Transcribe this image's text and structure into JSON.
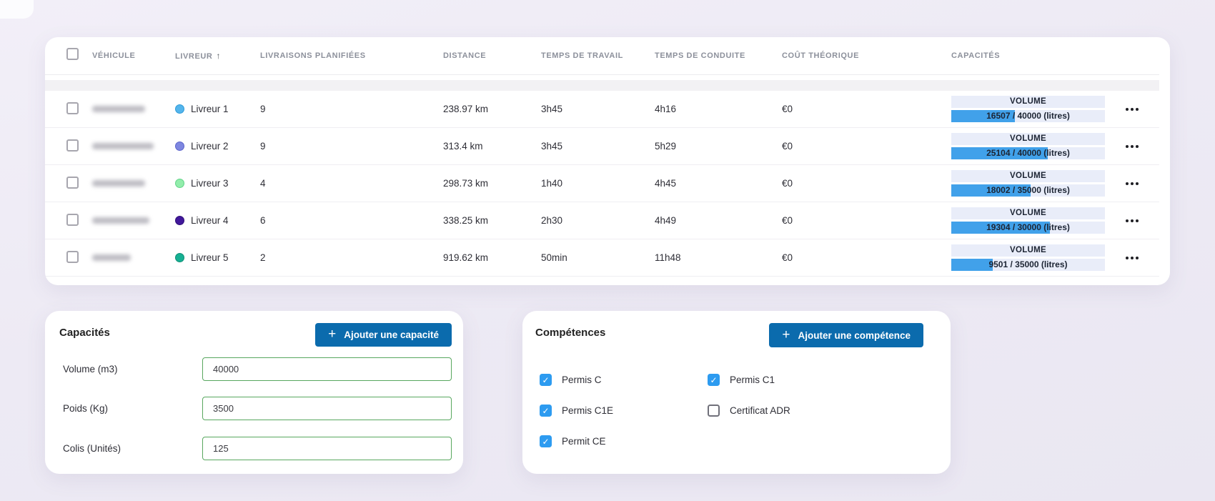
{
  "table": {
    "columns": [
      "VÉHICULE",
      "LIVREUR",
      "LIVRAISONS PLANIFIÉES",
      "DISTANCE",
      "TEMPS DE TRAVAIL",
      "TEMPS DE CONDUITE",
      "COÛT THÉORIQUE",
      "CAPACITÉS"
    ],
    "sort_column": "LIVREUR",
    "sort_icon": "↑",
    "rows": [
      {
        "livreur": "Livreur 1",
        "dot_color": "#54b5ec",
        "dot_border": "#2e9bd8",
        "planned": "9",
        "distance": "238.97 km",
        "work": "3h45",
        "drive": "4h16",
        "cost": "€0",
        "capacity": {
          "label": "VOLUME",
          "value": 16507,
          "max": 40000,
          "display": "16507 / 40000 (litres)"
        }
      },
      {
        "livreur": "Livreur 2",
        "dot_color": "#7e87e0",
        "dot_border": "#5b64cb",
        "planned": "9",
        "distance": "313.4 km",
        "work": "3h45",
        "drive": "5h29",
        "cost": "€0",
        "capacity": {
          "label": "VOLUME",
          "value": 25104,
          "max": 40000,
          "display": "25104 / 40000 (litres)"
        }
      },
      {
        "livreur": "Livreur 3",
        "dot_color": "#92edab",
        "dot_border": "#63d489",
        "planned": "4",
        "distance": "298.73 km",
        "work": "1h40",
        "drive": "4h45",
        "cost": "€0",
        "capacity": {
          "label": "VOLUME",
          "value": 18002,
          "max": 35000,
          "display": "18002 / 35000 (litres)"
        }
      },
      {
        "livreur": "Livreur 4",
        "dot_color": "#41189b",
        "dot_border": "#300e79",
        "planned": "6",
        "distance": "338.25 km",
        "work": "2h30",
        "drive": "4h49",
        "cost": "€0",
        "capacity": {
          "label": "VOLUME",
          "value": 19304,
          "max": 30000,
          "display": "19304 / 30000 (litres)"
        }
      },
      {
        "livreur": "Livreur 5",
        "dot_color": "#16b093",
        "dot_border": "#0e8e75",
        "planned": "2",
        "distance": "919.62 km",
        "work": "50min",
        "drive": "11h48",
        "cost": "€0",
        "capacity": {
          "label": "VOLUME",
          "value": 9501,
          "max": 35000,
          "display": "9501 / 35000 (litres)"
        }
      }
    ]
  },
  "capacites_panel": {
    "title": "Capacités",
    "add_button": "Ajouter une capacité",
    "plus_icon": "+",
    "fields": [
      {
        "label": "Volume (m3)",
        "value": "40000"
      },
      {
        "label": "Poids (Kg)",
        "value": "3500"
      },
      {
        "label": "Colis (Unités)",
        "value": "125"
      }
    ]
  },
  "competences_panel": {
    "title": "Compétences",
    "add_button": "Ajouter une compétence",
    "plus_icon": "+",
    "check_icon": "✓",
    "items": [
      {
        "label": "Permis C",
        "checked": true
      },
      {
        "label": "Permis C1",
        "checked": true
      },
      {
        "label": "Permis C1E",
        "checked": true
      },
      {
        "label": "Certificat ADR",
        "checked": false
      },
      {
        "label": "Permit CE",
        "checked": true
      }
    ]
  },
  "colors": {
    "accent_blue_button": "#0b6bad",
    "checkbox_blue": "#2d9bf0",
    "progress_blue": "#41a1ea",
    "progress_track": "#e9edf9",
    "input_border_green": "#58a75f",
    "page_background": "#edeaf4"
  }
}
